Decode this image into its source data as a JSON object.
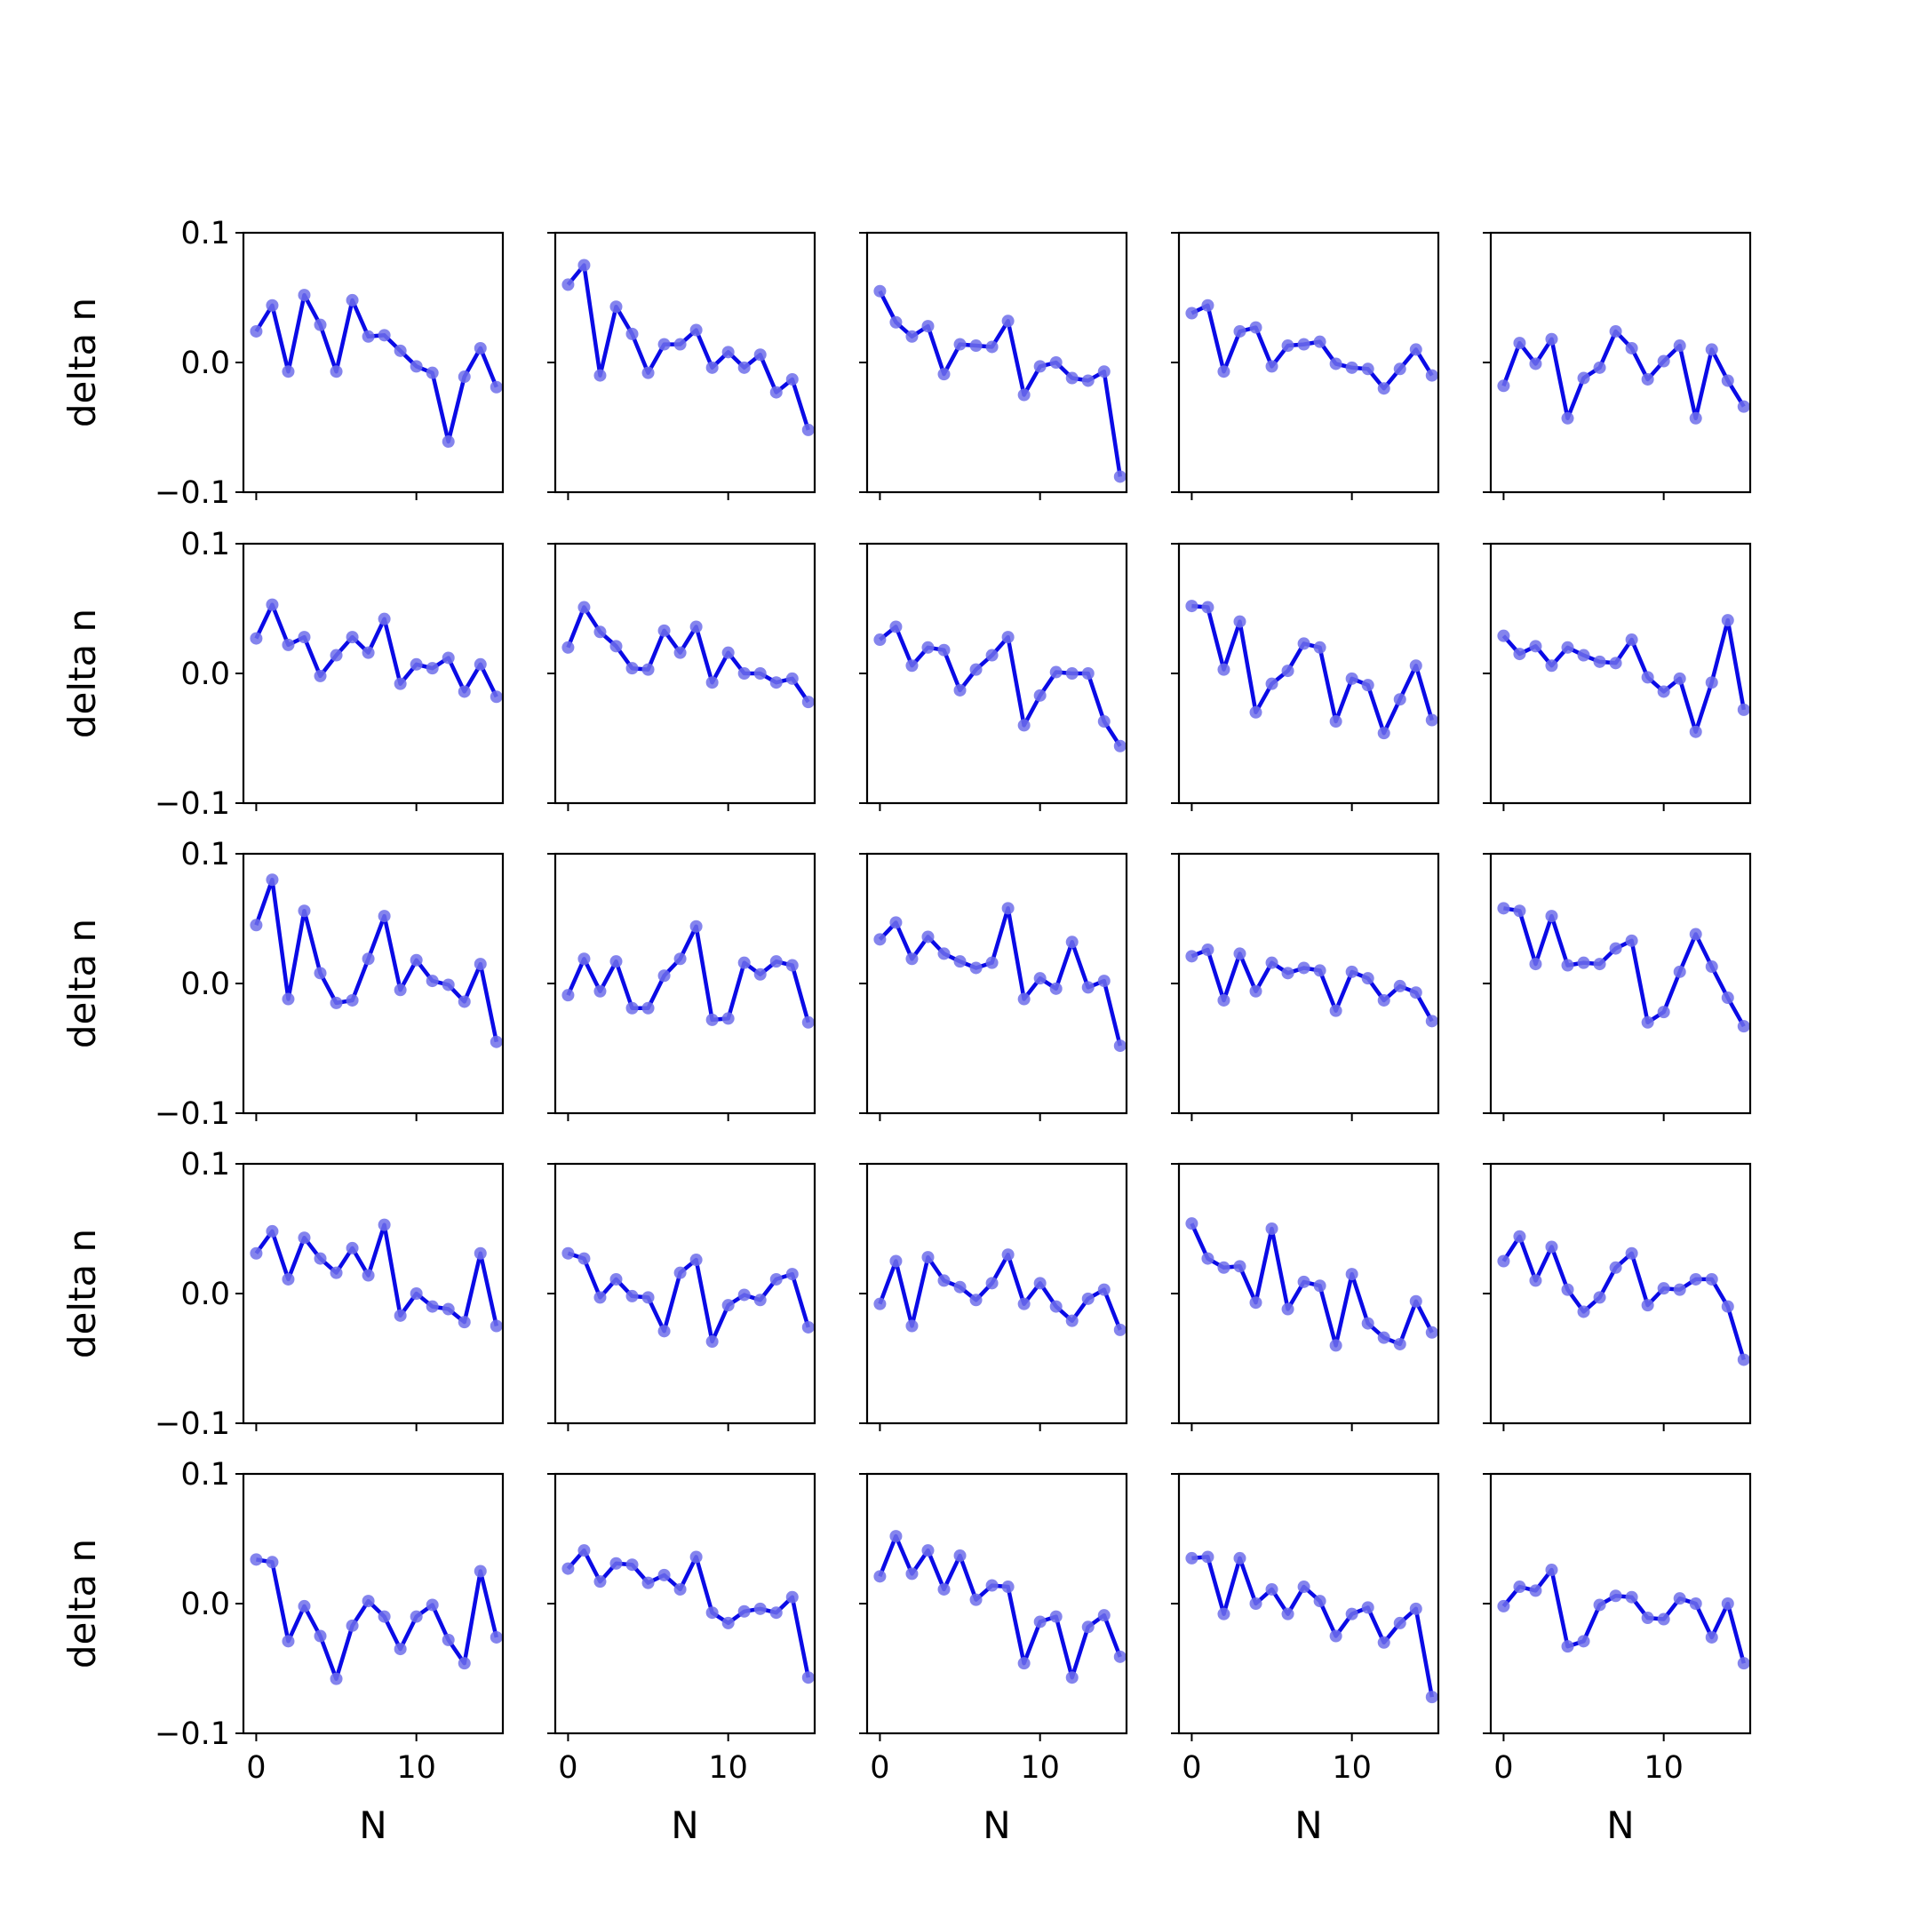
{
  "figure": {
    "line_color": "#0a0ae6",
    "marker_color": "#6f6fea",
    "background": "#ffffff"
  },
  "chart_data": {
    "type": "line",
    "layout": "5x5 grid of small multiples, shared axes",
    "x": [
      0,
      1,
      2,
      3,
      4,
      5,
      6,
      7,
      8,
      9,
      10,
      11,
      12,
      13,
      14,
      15
    ],
    "xlabel": "N",
    "ylabel": "delta n",
    "xlim": [
      -0.8,
      15.4
    ],
    "ylim": [
      -0.1,
      0.1
    ],
    "xticks": [
      0,
      10
    ],
    "xtick_labels": [
      "0",
      "10"
    ],
    "yticks": [
      -0.1,
      0.0,
      0.1
    ],
    "ytick_labels": [
      "−0.1",
      "0.0",
      "0.1"
    ],
    "grid": false,
    "panels": [
      {
        "row": 1,
        "col": 1,
        "values": [
          0.024,
          0.044,
          -0.007,
          0.052,
          0.029,
          -0.007,
          0.048,
          0.02,
          0.021,
          0.009,
          -0.003,
          -0.008,
          -0.061,
          -0.011,
          0.011,
          -0.019
        ]
      },
      {
        "row": 1,
        "col": 2,
        "values": [
          0.06,
          0.075,
          -0.01,
          0.043,
          0.022,
          -0.008,
          0.014,
          0.014,
          0.025,
          -0.004,
          0.008,
          -0.004,
          0.006,
          -0.023,
          -0.013,
          -0.052
        ]
      },
      {
        "row": 1,
        "col": 3,
        "values": [
          0.055,
          0.031,
          0.02,
          0.028,
          -0.009,
          0.014,
          0.013,
          0.012,
          0.032,
          -0.025,
          -0.003,
          0.0,
          -0.012,
          -0.014,
          -0.007,
          -0.088
        ]
      },
      {
        "row": 1,
        "col": 4,
        "values": [
          0.038,
          0.044,
          -0.007,
          0.024,
          0.027,
          -0.003,
          0.013,
          0.014,
          0.016,
          -0.001,
          -0.004,
          -0.005,
          -0.02,
          -0.005,
          0.01,
          -0.01
        ]
      },
      {
        "row": 1,
        "col": 5,
        "values": [
          -0.018,
          0.015,
          -0.001,
          0.018,
          -0.043,
          -0.012,
          -0.004,
          0.024,
          0.011,
          -0.013,
          0.001,
          0.013,
          -0.043,
          0.01,
          -0.014,
          -0.034
        ]
      },
      {
        "row": 2,
        "col": 1,
        "values": [
          0.027,
          0.053,
          0.022,
          0.028,
          -0.002,
          0.014,
          0.028,
          0.016,
          0.042,
          -0.008,
          0.007,
          0.004,
          0.012,
          -0.014,
          0.007,
          -0.018
        ]
      },
      {
        "row": 2,
        "col": 2,
        "values": [
          0.02,
          0.051,
          0.032,
          0.021,
          0.004,
          0.003,
          0.033,
          0.016,
          0.036,
          -0.007,
          0.016,
          0.0,
          0.0,
          -0.007,
          -0.004,
          -0.022
        ]
      },
      {
        "row": 2,
        "col": 3,
        "values": [
          0.026,
          0.036,
          0.006,
          0.02,
          0.018,
          -0.013,
          0.003,
          0.014,
          0.028,
          -0.04,
          -0.017,
          0.001,
          0.0,
          0.0,
          -0.037,
          -0.056
        ]
      },
      {
        "row": 2,
        "col": 4,
        "values": [
          0.052,
          0.051,
          0.003,
          0.04,
          -0.03,
          -0.008,
          0.002,
          0.023,
          0.02,
          -0.037,
          -0.004,
          -0.009,
          -0.046,
          -0.02,
          0.006,
          -0.036
        ]
      },
      {
        "row": 2,
        "col": 5,
        "values": [
          0.029,
          0.015,
          0.021,
          0.006,
          0.02,
          0.014,
          0.009,
          0.008,
          0.026,
          -0.003,
          -0.014,
          -0.004,
          -0.045,
          -0.007,
          0.041,
          -0.028
        ]
      },
      {
        "row": 3,
        "col": 1,
        "values": [
          0.045,
          0.08,
          -0.012,
          0.056,
          0.008,
          -0.015,
          -0.013,
          0.019,
          0.052,
          -0.005,
          0.018,
          0.002,
          -0.001,
          -0.014,
          0.015,
          -0.045
        ]
      },
      {
        "row": 3,
        "col": 2,
        "values": [
          -0.009,
          0.019,
          -0.006,
          0.017,
          -0.019,
          -0.019,
          0.006,
          0.019,
          0.044,
          -0.028,
          -0.027,
          0.016,
          0.007,
          0.017,
          0.014,
          -0.03
        ]
      },
      {
        "row": 3,
        "col": 3,
        "values": [
          0.034,
          0.047,
          0.019,
          0.036,
          0.023,
          0.017,
          0.012,
          0.016,
          0.058,
          -0.012,
          0.004,
          -0.004,
          0.032,
          -0.003,
          0.002,
          -0.048
        ]
      },
      {
        "row": 3,
        "col": 4,
        "values": [
          0.021,
          0.026,
          -0.013,
          0.023,
          -0.006,
          0.016,
          0.008,
          0.012,
          0.01,
          -0.021,
          0.009,
          0.004,
          -0.013,
          -0.002,
          -0.007,
          -0.029
        ]
      },
      {
        "row": 3,
        "col": 5,
        "values": [
          0.058,
          0.056,
          0.015,
          0.052,
          0.014,
          0.016,
          0.015,
          0.027,
          0.033,
          -0.03,
          -0.022,
          0.009,
          0.038,
          0.013,
          -0.011,
          -0.033
        ]
      },
      {
        "row": 4,
        "col": 1,
        "values": [
          0.031,
          0.048,
          0.011,
          0.043,
          0.027,
          0.016,
          0.035,
          0.014,
          0.053,
          -0.017,
          0.0,
          -0.01,
          -0.012,
          -0.022,
          0.031,
          -0.025
        ]
      },
      {
        "row": 4,
        "col": 2,
        "values": [
          0.031,
          0.027,
          -0.003,
          0.011,
          -0.002,
          -0.003,
          -0.029,
          0.016,
          0.026,
          -0.037,
          -0.009,
          -0.001,
          -0.005,
          0.011,
          0.015,
          -0.026
        ]
      },
      {
        "row": 4,
        "col": 3,
        "values": [
          -0.008,
          0.025,
          -0.025,
          0.028,
          0.01,
          0.005,
          -0.005,
          0.008,
          0.03,
          -0.008,
          0.008,
          -0.01,
          -0.021,
          -0.004,
          0.003,
          -0.028
        ]
      },
      {
        "row": 4,
        "col": 4,
        "values": [
          0.054,
          0.027,
          0.02,
          0.021,
          -0.007,
          0.05,
          -0.012,
          0.009,
          0.006,
          -0.04,
          0.015,
          -0.023,
          -0.034,
          -0.039,
          -0.006,
          -0.03
        ]
      },
      {
        "row": 4,
        "col": 5,
        "values": [
          0.025,
          0.044,
          0.01,
          0.036,
          0.003,
          -0.014,
          -0.003,
          0.02,
          0.031,
          -0.009,
          0.004,
          0.003,
          0.011,
          0.011,
          -0.01,
          -0.051
        ]
      },
      {
        "row": 5,
        "col": 1,
        "values": [
          0.034,
          0.032,
          -0.029,
          -0.002,
          -0.025,
          -0.058,
          -0.017,
          0.002,
          -0.01,
          -0.035,
          -0.01,
          -0.001,
          -0.028,
          -0.046,
          0.025,
          -0.026
        ]
      },
      {
        "row": 5,
        "col": 2,
        "values": [
          0.027,
          0.041,
          0.017,
          0.031,
          0.03,
          0.016,
          0.022,
          0.011,
          0.036,
          -0.007,
          -0.015,
          -0.006,
          -0.004,
          -0.007,
          0.005,
          -0.057
        ]
      },
      {
        "row": 5,
        "col": 3,
        "values": [
          0.021,
          0.052,
          0.023,
          0.041,
          0.011,
          0.037,
          0.003,
          0.014,
          0.013,
          -0.046,
          -0.014,
          -0.01,
          -0.057,
          -0.018,
          -0.009,
          -0.041
        ]
      },
      {
        "row": 5,
        "col": 4,
        "values": [
          0.035,
          0.036,
          -0.008,
          0.035,
          0.0,
          0.011,
          -0.008,
          0.013,
          0.002,
          -0.025,
          -0.008,
          -0.003,
          -0.03,
          -0.015,
          -0.004,
          -0.072
        ]
      },
      {
        "row": 5,
        "col": 5,
        "values": [
          -0.002,
          0.013,
          0.01,
          0.026,
          -0.033,
          -0.029,
          -0.001,
          0.006,
          0.005,
          -0.011,
          -0.012,
          0.004,
          0.0,
          -0.026,
          0.0,
          -0.046
        ]
      }
    ]
  }
}
